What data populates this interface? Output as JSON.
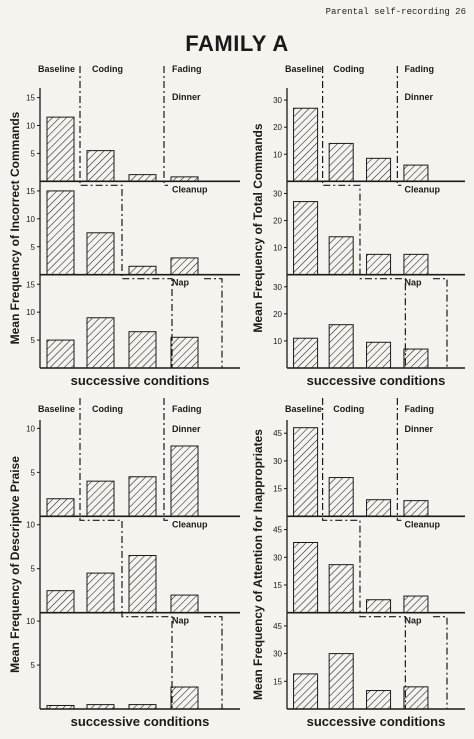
{
  "page": {
    "header_note": "Parental self-recording 26",
    "title": "FAMILY A"
  },
  "colors": {
    "ink": "#1a1a1a",
    "paper": "#f5f3ee"
  },
  "chart_data": [
    {
      "type": "bar",
      "ylabel": "Mean Frequency of Incorrect Commands",
      "xlabel": "successive conditions",
      "phases": [
        "Baseline",
        "Coding",
        "Fading"
      ],
      "panels": [
        {
          "setting": "Dinner",
          "ylim": [
            0,
            16
          ],
          "ticks": [
            5,
            10,
            15
          ],
          "values": [
            11.5,
            5.5,
            1.2,
            0.8
          ]
        },
        {
          "setting": "Cleanup",
          "ylim": [
            0,
            16
          ],
          "ticks": [
            5,
            10,
            15
          ],
          "values": [
            15,
            7.5,
            1.5,
            3
          ]
        },
        {
          "setting": "Nap",
          "ylim": [
            0,
            16
          ],
          "ticks": [
            5,
            10,
            15
          ],
          "values": [
            5,
            9,
            6.5,
            5.5
          ]
        }
      ]
    },
    {
      "type": "bar",
      "ylabel": "Mean Frequency of Total Commands",
      "xlabel": "successive conditions",
      "phases": [
        "Baseline",
        "Coding",
        "Fading"
      ],
      "panels": [
        {
          "setting": "Dinner",
          "ylim": [
            0,
            33
          ],
          "ticks": [
            10,
            20,
            30
          ],
          "values": [
            27,
            14,
            8.5,
            6
          ]
        },
        {
          "setting": "Cleanup",
          "ylim": [
            0,
            33
          ],
          "ticks": [
            10,
            20,
            30
          ],
          "values": [
            27,
            14,
            7.5,
            7.5
          ]
        },
        {
          "setting": "Nap",
          "ylim": [
            0,
            33
          ],
          "ticks": [
            10,
            20,
            30
          ],
          "values": [
            11,
            16,
            9.5,
            7
          ]
        }
      ]
    },
    {
      "type": "bar",
      "ylabel": "Mean Frequency of Descriptive Praise",
      "xlabel": "successive conditions",
      "phases": [
        "Baseline",
        "Coding",
        "Fading"
      ],
      "panels": [
        {
          "setting": "Dinner",
          "ylim": [
            0,
            10.5
          ],
          "ticks": [
            5,
            10
          ],
          "values": [
            2,
            4,
            4.5,
            8
          ]
        },
        {
          "setting": "Cleanup",
          "ylim": [
            0,
            10.5
          ],
          "ticks": [
            5,
            10
          ],
          "values": [
            2.5,
            4.5,
            6.5,
            2
          ]
        },
        {
          "setting": "Nap",
          "ylim": [
            0,
            10.5
          ],
          "ticks": [
            5,
            10
          ],
          "values": [
            0.4,
            0.5,
            0.5,
            2.5
          ]
        }
      ]
    },
    {
      "type": "bar",
      "ylabel": "Mean Frequency of Attention for Inappropriates",
      "xlabel": "successive conditions",
      "phases": [
        "Baseline",
        "Coding",
        "Fading"
      ],
      "panels": [
        {
          "setting": "Dinner",
          "ylim": [
            0,
            50
          ],
          "ticks": [
            15,
            30,
            45
          ],
          "values": [
            48,
            21,
            9,
            8.5
          ]
        },
        {
          "setting": "Cleanup",
          "ylim": [
            0,
            50
          ],
          "ticks": [
            15,
            30,
            45
          ],
          "values": [
            38,
            26,
            7,
            9
          ]
        },
        {
          "setting": "Nap",
          "ylim": [
            0,
            50
          ],
          "ticks": [
            15,
            30,
            45
          ],
          "values": [
            19,
            30,
            10,
            12
          ]
        }
      ]
    }
  ]
}
